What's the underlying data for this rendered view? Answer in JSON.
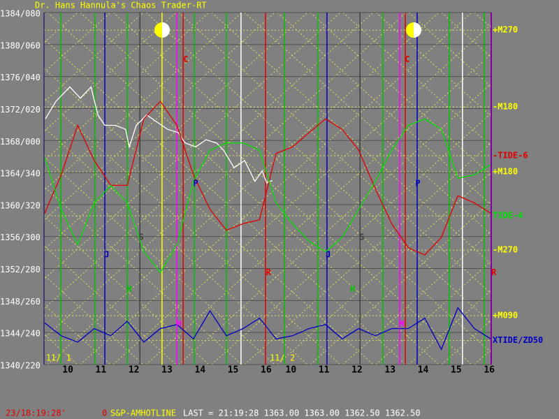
{
  "chart_data": {
    "type": "line",
    "title": "Dr. Hans Hannula's Chaos Trader-RT",
    "xlim": [
      9.28,
      22.81
    ],
    "ylim": [
      1340,
      1384
    ],
    "yticks": [
      {
        "value": 1384,
        "label": "1384/080"
      },
      {
        "value": 1380,
        "label": "1380/060"
      },
      {
        "value": 1376,
        "label": "1376/040"
      },
      {
        "value": 1372,
        "label": "1372/020"
      },
      {
        "value": 1368,
        "label": "1368/000"
      },
      {
        "value": 1364,
        "label": "1364/340"
      },
      {
        "value": 1360,
        "label": "1360/320"
      },
      {
        "value": 1356,
        "label": "1356/300"
      },
      {
        "value": 1352,
        "label": "1352/280"
      },
      {
        "value": 1348,
        "label": "1348/260"
      },
      {
        "value": 1344,
        "label": "1344/240"
      },
      {
        "value": 1340,
        "label": "1340/220"
      }
    ],
    "xticks": [
      10,
      11,
      12,
      13,
      14,
      15,
      16,
      {
        "value": 16.75,
        "label": "10"
      },
      {
        "value": 17.75,
        "label": "11"
      },
      {
        "value": 18.75,
        "label": "12"
      },
      {
        "value": 19.75,
        "label": "13"
      },
      {
        "value": 20.75,
        "label": "14"
      },
      {
        "value": 21.75,
        "label": "15"
      },
      {
        "value": 22.75,
        "label": "16"
      }
    ],
    "grid": true,
    "date_labels": [
      {
        "text": "11/ 1",
        "x": 9.34
      },
      {
        "text": "11/ 2",
        "x": 16.11
      }
    ],
    "series": [
      {
        "color": "#ffffff",
        "x": [
          9.32,
          9.64,
          10.06,
          10.38,
          10.7,
          10.91,
          11.12,
          11.44,
          11.75,
          11.86,
          12.07,
          12.39,
          12.7,
          13.02,
          13.34,
          13.55,
          13.87,
          14.18,
          14.5,
          14.71,
          15.03,
          15.35,
          15.66,
          15.88,
          16.02,
          16.19
        ],
        "values": [
          1370.7,
          1372.9,
          1374.7,
          1373.3,
          1374.7,
          1371.2,
          1369.9,
          1369.9,
          1369.4,
          1367.2,
          1369.9,
          1371.2,
          1370.3,
          1369.4,
          1369.0,
          1367.7,
          1367.2,
          1368.1,
          1367.7,
          1366.8,
          1364.6,
          1365.5,
          1362.9,
          1364.2,
          1362.7,
          1363.0
        ]
      },
      {
        "color": "#e00000",
        "x": [
          9.3,
          9.8,
          10.3,
          10.8,
          11.3,
          11.8,
          12.3,
          12.8,
          13.3,
          13.8,
          14.3,
          14.8,
          15.3,
          15.8,
          16.3,
          16.8,
          17.3,
          17.8,
          18.3,
          18.8,
          19.3,
          19.8,
          20.3,
          20.8,
          21.3,
          21.8,
          22.3,
          22.8
        ],
        "values": [
          1358.9,
          1363.7,
          1369.9,
          1365.5,
          1362.4,
          1362.4,
          1370.7,
          1372.9,
          1369.9,
          1363.7,
          1359.4,
          1356.8,
          1357.6,
          1358.1,
          1366.4,
          1367.2,
          1369.0,
          1370.7,
          1369.4,
          1366.8,
          1362.0,
          1357.6,
          1354.6,
          1353.7,
          1355.9,
          1361.1,
          1360.2,
          1358.9
        ]
      },
      {
        "color": "#00e000",
        "x": [
          9.3,
          9.8,
          10.3,
          10.8,
          11.3,
          11.8,
          12.3,
          12.8,
          13.3,
          13.8,
          14.3,
          14.8,
          15.3,
          15.8,
          16.3,
          16.8,
          17.3,
          17.8,
          18.3,
          18.8,
          19.3,
          19.8,
          20.3,
          20.8,
          21.3,
          21.8,
          22.3,
          22.8
        ],
        "values": [
          1365.9,
          1359.4,
          1355.0,
          1360.2,
          1362.4,
          1360.2,
          1354.1,
          1351.5,
          1355.0,
          1362.9,
          1366.8,
          1367.7,
          1367.7,
          1366.8,
          1360.2,
          1357.6,
          1355.4,
          1354.1,
          1355.9,
          1359.4,
          1362.9,
          1366.8,
          1369.9,
          1370.7,
          1369.4,
          1363.3,
          1363.7,
          1365.0
        ]
      },
      {
        "color": "#0000c0",
        "x": [
          9.3,
          9.8,
          10.3,
          10.8,
          11.3,
          11.8,
          12.3,
          12.8,
          13.3,
          13.8,
          14.3,
          14.8,
          15.3,
          15.8,
          16.3,
          16.8,
          17.3,
          17.8,
          18.3,
          18.8,
          19.3,
          19.8,
          20.3,
          20.8,
          21.3,
          21.8,
          22.3,
          22.8
        ],
        "values": [
          1345.2,
          1343.6,
          1342.8,
          1344.5,
          1343.6,
          1345.4,
          1342.8,
          1344.5,
          1345.0,
          1343.2,
          1346.7,
          1343.6,
          1344.5,
          1345.8,
          1343.2,
          1343.6,
          1344.5,
          1345.0,
          1343.2,
          1344.5,
          1343.6,
          1344.5,
          1344.5,
          1345.8,
          1341.9,
          1347.1,
          1344.5,
          1343.2
        ]
      }
    ],
    "vertical_lines": [
      {
        "x": 9.79,
        "color": "#00c000"
      },
      {
        "x": 10.82,
        "color": "#00c000"
      },
      {
        "x": 11.12,
        "color": "#0000c0"
      },
      {
        "x": 11.8,
        "color": "#00c000"
      },
      {
        "x": 12.18,
        "color": "#404040"
      },
      {
        "x": 12.85,
        "color": "#ffff00"
      },
      {
        "x": 13.3,
        "color": "#ff00ff"
      },
      {
        "x": 13.49,
        "color": "#e00000"
      },
      {
        "x": 13.83,
        "color": "#00c000"
      },
      {
        "x": 14.8,
        "color": "#00c000"
      },
      {
        "x": 15.24,
        "color": "#ffffff"
      },
      {
        "x": 15.98,
        "color": "#e00000"
      },
      {
        "x": 16.55,
        "color": "#00c000"
      },
      {
        "x": 17.56,
        "color": "#00c000"
      },
      {
        "x": 17.84,
        "color": "#0000c0"
      },
      {
        "x": 18.84,
        "color": "#404040"
      },
      {
        "x": 19.53,
        "color": "#00c000"
      },
      {
        "x": 20.04,
        "color": "#ff00ff"
      },
      {
        "x": 20.21,
        "color": "#e00000"
      },
      {
        "x": 20.57,
        "color": "#0000c0"
      },
      {
        "x": 21.54,
        "color": "#00c000"
      },
      {
        "x": 21.94,
        "color": "#ffffff"
      },
      {
        "x": 22.6,
        "color": "#00c000"
      }
    ],
    "annotations": [
      {
        "text": "C",
        "x": 13.57,
        "y": 1378.1,
        "color": "#e00000"
      },
      {
        "text": "C",
        "x": 20.27,
        "y": 1378.1,
        "color": "#e00000"
      },
      {
        "text": "P",
        "x": 13.87,
        "y": 1362.6,
        "color": "#0000c0"
      },
      {
        "text": "P",
        "x": 20.59,
        "y": 1362.6,
        "color": "#0000c0"
      },
      {
        "text": "J",
        "x": 11.18,
        "y": 1353.7,
        "color": "#0000c0"
      },
      {
        "text": "J",
        "x": 17.88,
        "y": 1353.7,
        "color": "#0000c0"
      },
      {
        "text": "S",
        "x": 12.22,
        "y": 1355.9,
        "color": "#404040"
      },
      {
        "text": "S",
        "x": 18.9,
        "y": 1355.9,
        "color": "#404040"
      },
      {
        "text": "H",
        "x": 11.86,
        "y": 1349.4,
        "color": "#00c000"
      },
      {
        "text": "H",
        "x": 18.62,
        "y": 1349.4,
        "color": "#00c000"
      },
      {
        "text": "R",
        "x": 16.07,
        "y": 1351.5,
        "color": "#e00000"
      },
      {
        "text": "R",
        "x": 22.81,
        "y": 1351.5,
        "color": "#e00000"
      },
      {
        "text": "M",
        "x": 13.36,
        "y": 1345.0,
        "color": "#ff00ff"
      },
      {
        "text": "M",
        "x": 20.1,
        "y": 1345.0,
        "color": "#ff00ff"
      }
    ],
    "right_labels": [
      {
        "text": "+M270",
        "y": 1381.8,
        "color": "#ffff00"
      },
      {
        "text": "-M180",
        "y": 1372.2,
        "color": "#ffff00"
      },
      {
        "text": "-TIDE-6",
        "y": 1366.1,
        "color": "#e00000"
      },
      {
        "text": "+M180",
        "y": 1364.1,
        "color": "#ffff00"
      },
      {
        "text": "TIDE-4",
        "y": 1358.6,
        "color": "#00e000"
      },
      {
        "text": "-M270",
        "y": 1354.3,
        "color": "#ffff00"
      },
      {
        "text": "+M090",
        "y": 1346.1,
        "color": "#ffff00"
      },
      {
        "text": "XTIDE/ZD50",
        "y": 1343.0,
        "color": "#0000c0"
      }
    ]
  },
  "status_bar": {
    "time": "23/18:19:28'",
    "code": "0",
    "feed": "S&P-AMHOTLINE",
    "last": "LAST = 21:19:28 1363.00 1363.00 1362.50 1362.50"
  }
}
